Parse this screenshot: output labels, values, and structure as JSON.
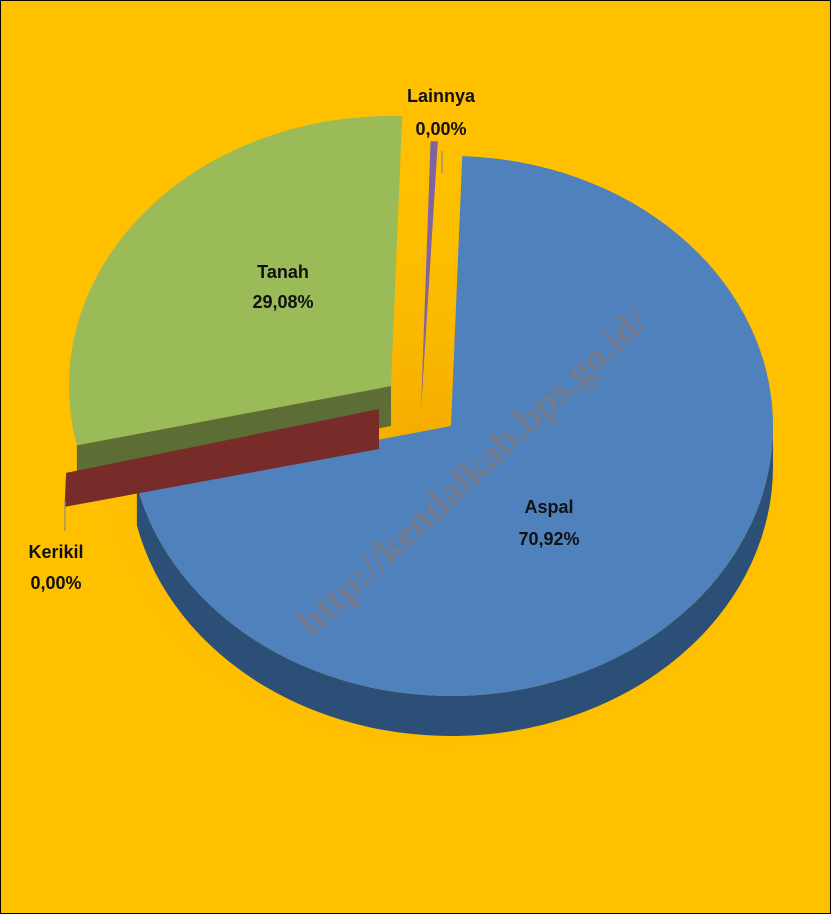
{
  "chart_data": {
    "type": "pie",
    "title": "",
    "slices": [
      {
        "label": "Aspal",
        "value": 70.92,
        "value_text": "70,92%",
        "color": "#4F81BD",
        "side_color": "#2B4F77"
      },
      {
        "label": "Lainnya",
        "value": 0.0,
        "value_text": "0,00%",
        "color": "#8064A2",
        "side_color": "#4E3C66"
      },
      {
        "label": "Tanah",
        "value": 29.08,
        "value_text": "29,08%",
        "color": "#9BBB59",
        "side_color": "#5C6E35"
      },
      {
        "label": "Kerikil",
        "value": 0.0,
        "value_text": "0,00%",
        "color": "#772C2A",
        "side_color": "#5A201E"
      }
    ],
    "background_color": "#FFC000",
    "watermark": "http://kendalkab.bps.go.id/"
  }
}
